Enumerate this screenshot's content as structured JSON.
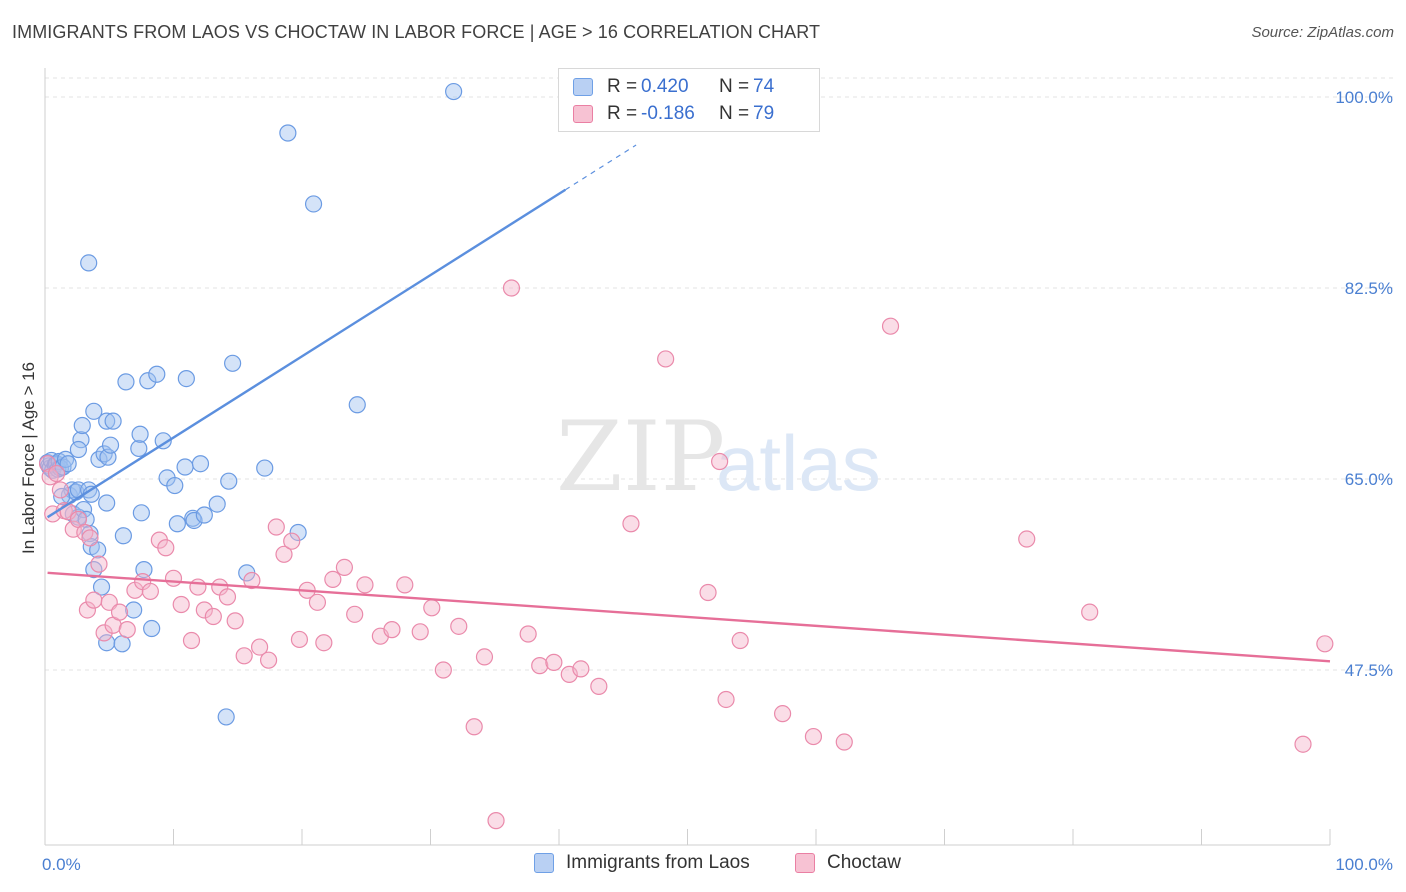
{
  "title": "IMMIGRANTS FROM LAOS VS CHOCTAW IN LABOR FORCE | AGE > 16 CORRELATION CHART",
  "source": "Source: ZipAtlas.com",
  "watermark": {
    "zip": "ZIP",
    "atlas": "atlas"
  },
  "legend": {
    "r_label": "R =",
    "n_label": "N =",
    "series": [
      {
        "name": "Immigrants from Laos",
        "r": "0.420",
        "n": "74",
        "color": "#6fa0e6",
        "fill": "#b9d0f3"
      },
      {
        "name": "Choctaw",
        "r": "-0.186",
        "n": "79",
        "color": "#ea7fa3",
        "fill": "#f7c2d3"
      }
    ]
  },
  "chart_data": {
    "type": "scatter",
    "title": "IMMIGRANTS FROM LAOS VS CHOCTAW IN LABOR FORCE | AGE > 16 CORRELATION CHART",
    "xlabel": "",
    "ylabel": "In Labor Force | Age > 16",
    "xlim": [
      0,
      100
    ],
    "ylim": [
      32.5,
      102
    ],
    "x_tick_labels": [
      "0.0%",
      "100.0%"
    ],
    "y_ticks": [
      47.5,
      65.0,
      82.5,
      100.0
    ],
    "y_tick_labels": [
      "47.5%",
      "65.0%",
      "82.5%",
      "100.0%"
    ],
    "series": [
      {
        "name": "Immigrants from Laos",
        "color": "#5b8fde",
        "trend": {
          "x0": 0.2,
          "y0": 61.5,
          "x1": 40.5,
          "y1": 91.5,
          "dash_to_x": 46.0,
          "dash_to_y": 95.6
        },
        "points": [
          [
            0.2,
            66.5
          ],
          [
            0.3,
            66.2
          ],
          [
            0.4,
            66.0
          ],
          [
            0.5,
            66.7
          ],
          [
            0.6,
            65.8
          ],
          [
            0.8,
            66.3
          ],
          [
            0.9,
            66.4
          ],
          [
            1.0,
            65.9
          ],
          [
            1.1,
            66.6
          ],
          [
            1.2,
            66.0
          ],
          [
            1.4,
            66.1
          ],
          [
            1.6,
            66.8
          ],
          [
            1.8,
            66.4
          ],
          [
            1.9,
            63.5
          ],
          [
            2.1,
            64.0
          ],
          [
            2.2,
            61.8
          ],
          [
            2.4,
            63.8
          ],
          [
            2.6,
            61.5
          ],
          [
            2.6,
            64.0
          ],
          [
            2.8,
            68.6
          ],
          [
            2.9,
            69.9
          ],
          [
            3.0,
            62.2
          ],
          [
            3.2,
            61.3
          ],
          [
            3.4,
            64.0
          ],
          [
            3.5,
            60.0
          ],
          [
            3.6,
            63.6
          ],
          [
            3.6,
            58.8
          ],
          [
            3.8,
            56.7
          ],
          [
            3.8,
            71.2
          ],
          [
            4.1,
            58.5
          ],
          [
            4.2,
            66.8
          ],
          [
            4.4,
            55.1
          ],
          [
            4.6,
            67.3
          ],
          [
            4.8,
            50.0
          ],
          [
            4.8,
            70.3
          ],
          [
            4.9,
            67.0
          ],
          [
            5.1,
            68.1
          ],
          [
            5.3,
            70.3
          ],
          [
            6.0,
            49.9
          ],
          [
            6.1,
            59.8
          ],
          [
            6.3,
            73.9
          ],
          [
            6.9,
            53.0
          ],
          [
            7.3,
            67.8
          ],
          [
            7.4,
            69.1
          ],
          [
            7.7,
            56.7
          ],
          [
            8.0,
            74.0
          ],
          [
            8.3,
            51.3
          ],
          [
            8.7,
            74.6
          ],
          [
            9.2,
            68.5
          ],
          [
            9.5,
            65.1
          ],
          [
            10.1,
            64.4
          ],
          [
            10.3,
            60.9
          ],
          [
            10.9,
            66.1
          ],
          [
            11.0,
            74.2
          ],
          [
            11.5,
            61.4
          ],
          [
            11.6,
            61.2
          ],
          [
            12.1,
            66.4
          ],
          [
            12.4,
            61.7
          ],
          [
            13.4,
            62.7
          ],
          [
            14.1,
            43.2
          ],
          [
            14.3,
            64.8
          ],
          [
            14.6,
            75.6
          ],
          [
            15.7,
            56.4
          ],
          [
            17.1,
            66.0
          ],
          [
            18.9,
            96.7
          ],
          [
            19.7,
            60.1
          ],
          [
            20.9,
            90.2
          ],
          [
            24.3,
            71.8
          ],
          [
            31.8,
            100.5
          ],
          [
            3.4,
            84.8
          ],
          [
            1.3,
            63.4
          ],
          [
            7.5,
            61.9
          ],
          [
            4.8,
            62.8
          ],
          [
            2.6,
            67.7
          ]
        ]
      },
      {
        "name": "Choctaw",
        "color": "#e66f98",
        "trend": {
          "x0": 0.2,
          "y0": 56.4,
          "x1": 100.0,
          "y1": 48.3
        },
        "points": [
          [
            0.2,
            66.4
          ],
          [
            0.4,
            65.2
          ],
          [
            0.6,
            61.8
          ],
          [
            0.9,
            65.5
          ],
          [
            1.2,
            64.0
          ],
          [
            1.5,
            62.1
          ],
          [
            1.8,
            62.0
          ],
          [
            2.2,
            60.4
          ],
          [
            2.6,
            61.3
          ],
          [
            3.1,
            60.1
          ],
          [
            3.3,
            53.0
          ],
          [
            3.5,
            59.6
          ],
          [
            3.8,
            53.9
          ],
          [
            4.2,
            57.2
          ],
          [
            4.6,
            50.9
          ],
          [
            5.0,
            53.7
          ],
          [
            5.3,
            51.6
          ],
          [
            5.8,
            52.8
          ],
          [
            6.4,
            51.2
          ],
          [
            7.0,
            54.8
          ],
          [
            7.6,
            55.6
          ],
          [
            8.2,
            54.7
          ],
          [
            8.9,
            59.4
          ],
          [
            9.4,
            58.7
          ],
          [
            10.0,
            55.9
          ],
          [
            10.6,
            53.5
          ],
          [
            11.4,
            50.2
          ],
          [
            11.9,
            55.1
          ],
          [
            12.4,
            53.0
          ],
          [
            13.1,
            52.4
          ],
          [
            13.6,
            55.1
          ],
          [
            14.2,
            54.2
          ],
          [
            14.8,
            52.0
          ],
          [
            15.5,
            48.8
          ],
          [
            16.1,
            55.7
          ],
          [
            16.7,
            49.6
          ],
          [
            17.4,
            48.4
          ],
          [
            18.0,
            60.6
          ],
          [
            18.6,
            58.1
          ],
          [
            19.2,
            59.3
          ],
          [
            19.8,
            50.3
          ],
          [
            20.4,
            54.8
          ],
          [
            21.2,
            53.7
          ],
          [
            21.7,
            50.0
          ],
          [
            22.4,
            55.8
          ],
          [
            23.3,
            56.9
          ],
          [
            24.1,
            52.6
          ],
          [
            24.9,
            55.3
          ],
          [
            26.1,
            50.6
          ],
          [
            27.0,
            51.2
          ],
          [
            28.0,
            55.3
          ],
          [
            29.2,
            51.0
          ],
          [
            30.1,
            53.2
          ],
          [
            31.0,
            47.5
          ],
          [
            32.2,
            51.5
          ],
          [
            33.4,
            42.3
          ],
          [
            34.2,
            48.7
          ],
          [
            35.1,
            33.7
          ],
          [
            36.3,
            82.5
          ],
          [
            37.6,
            50.8
          ],
          [
            38.5,
            47.9
          ],
          [
            39.6,
            48.2
          ],
          [
            40.8,
            47.1
          ],
          [
            41.7,
            47.6
          ],
          [
            43.1,
            46.0
          ],
          [
            45.6,
            60.9
          ],
          [
            48.3,
            76.0
          ],
          [
            51.6,
            54.6
          ],
          [
            52.5,
            66.6
          ],
          [
            53.0,
            44.8
          ],
          [
            54.1,
            50.2
          ],
          [
            57.4,
            43.5
          ],
          [
            59.8,
            41.4
          ],
          [
            62.2,
            40.9
          ],
          [
            65.8,
            79.0
          ],
          [
            76.4,
            59.5
          ],
          [
            81.3,
            52.8
          ],
          [
            99.6,
            49.9
          ],
          [
            97.9,
            40.7
          ]
        ]
      }
    ]
  }
}
